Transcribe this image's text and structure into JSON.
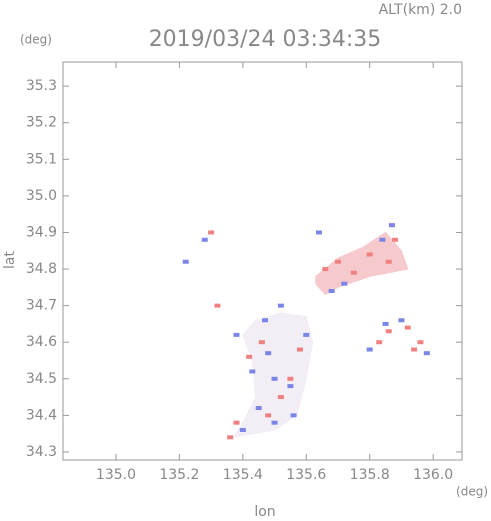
{
  "chart_data": {
    "type": "scatter",
    "title": "2019/03/24 03:34:35",
    "subtitle": "ALT(km) 2.0",
    "y_unit": "(deg)",
    "x_unit": "(deg)",
    "x_label": "lon",
    "y_label": "lat",
    "xlim": [
      134.833,
      136.091
    ],
    "ylim": [
      34.278,
      35.366
    ],
    "xticks": [
      {
        "value": 135,
        "label": "135.0"
      },
      135.2,
      135.4,
      135.6,
      135.8,
      {
        "value": 136,
        "label": "136.0"
      }
    ],
    "yticks": [
      34.3,
      34.4,
      34.5,
      34.6,
      34.7,
      34.8,
      34.9,
      {
        "value": 35,
        "label": "35.0"
      },
      35.1,
      35.2,
      35.3
    ],
    "regions": [
      {
        "color": "#f3eef5",
        "x": [
          135.37,
          135.5,
          135.57,
          135.6,
          135.62,
          135.6,
          135.52,
          135.44,
          135.4,
          135.43,
          135.44,
          135.4
        ],
        "y": [
          34.34,
          34.36,
          34.4,
          34.5,
          34.6,
          34.67,
          34.68,
          34.66,
          34.62,
          34.55,
          34.45,
          34.38
        ]
      },
      {
        "color": "#f6c9cc",
        "x": [
          135.63,
          135.7,
          135.78,
          135.85,
          135.9,
          135.92,
          135.8,
          135.7,
          135.66,
          135.63
        ],
        "y": [
          34.78,
          34.83,
          34.86,
          34.9,
          34.85,
          34.8,
          34.78,
          34.75,
          34.73,
          34.76
        ]
      }
    ],
    "series": [
      {
        "color": "#f08080",
        "x": [
          135.36,
          135.38,
          135.48,
          135.52,
          135.55,
          135.46,
          135.58,
          135.66,
          135.7,
          135.75,
          135.8,
          135.86,
          135.88,
          135.83,
          135.86,
          135.92,
          135.96,
          135.94,
          135.3,
          135.32,
          135.42
        ],
        "values": [
          34.34,
          34.38,
          34.4,
          34.45,
          34.5,
          34.6,
          34.58,
          34.8,
          34.82,
          34.79,
          34.84,
          34.82,
          34.88,
          34.6,
          34.63,
          34.64,
          34.6,
          34.58,
          34.9,
          34.7,
          34.56
        ]
      },
      {
        "color": "#7b85e8",
        "x": [
          135.4,
          135.45,
          135.5,
          135.55,
          135.43,
          135.47,
          135.52,
          135.6,
          135.64,
          135.68,
          135.72,
          135.84,
          135.87,
          135.8,
          135.85,
          135.9,
          135.98,
          135.22,
          135.28,
          135.38,
          135.48,
          135.56,
          135.5
        ],
        "values": [
          34.36,
          34.42,
          34.38,
          34.48,
          34.52,
          34.66,
          34.7,
          34.62,
          34.9,
          34.74,
          34.76,
          34.88,
          34.92,
          34.58,
          34.65,
          34.66,
          34.57,
          34.82,
          34.88,
          34.62,
          34.57,
          34.4,
          34.5
        ]
      }
    ]
  }
}
